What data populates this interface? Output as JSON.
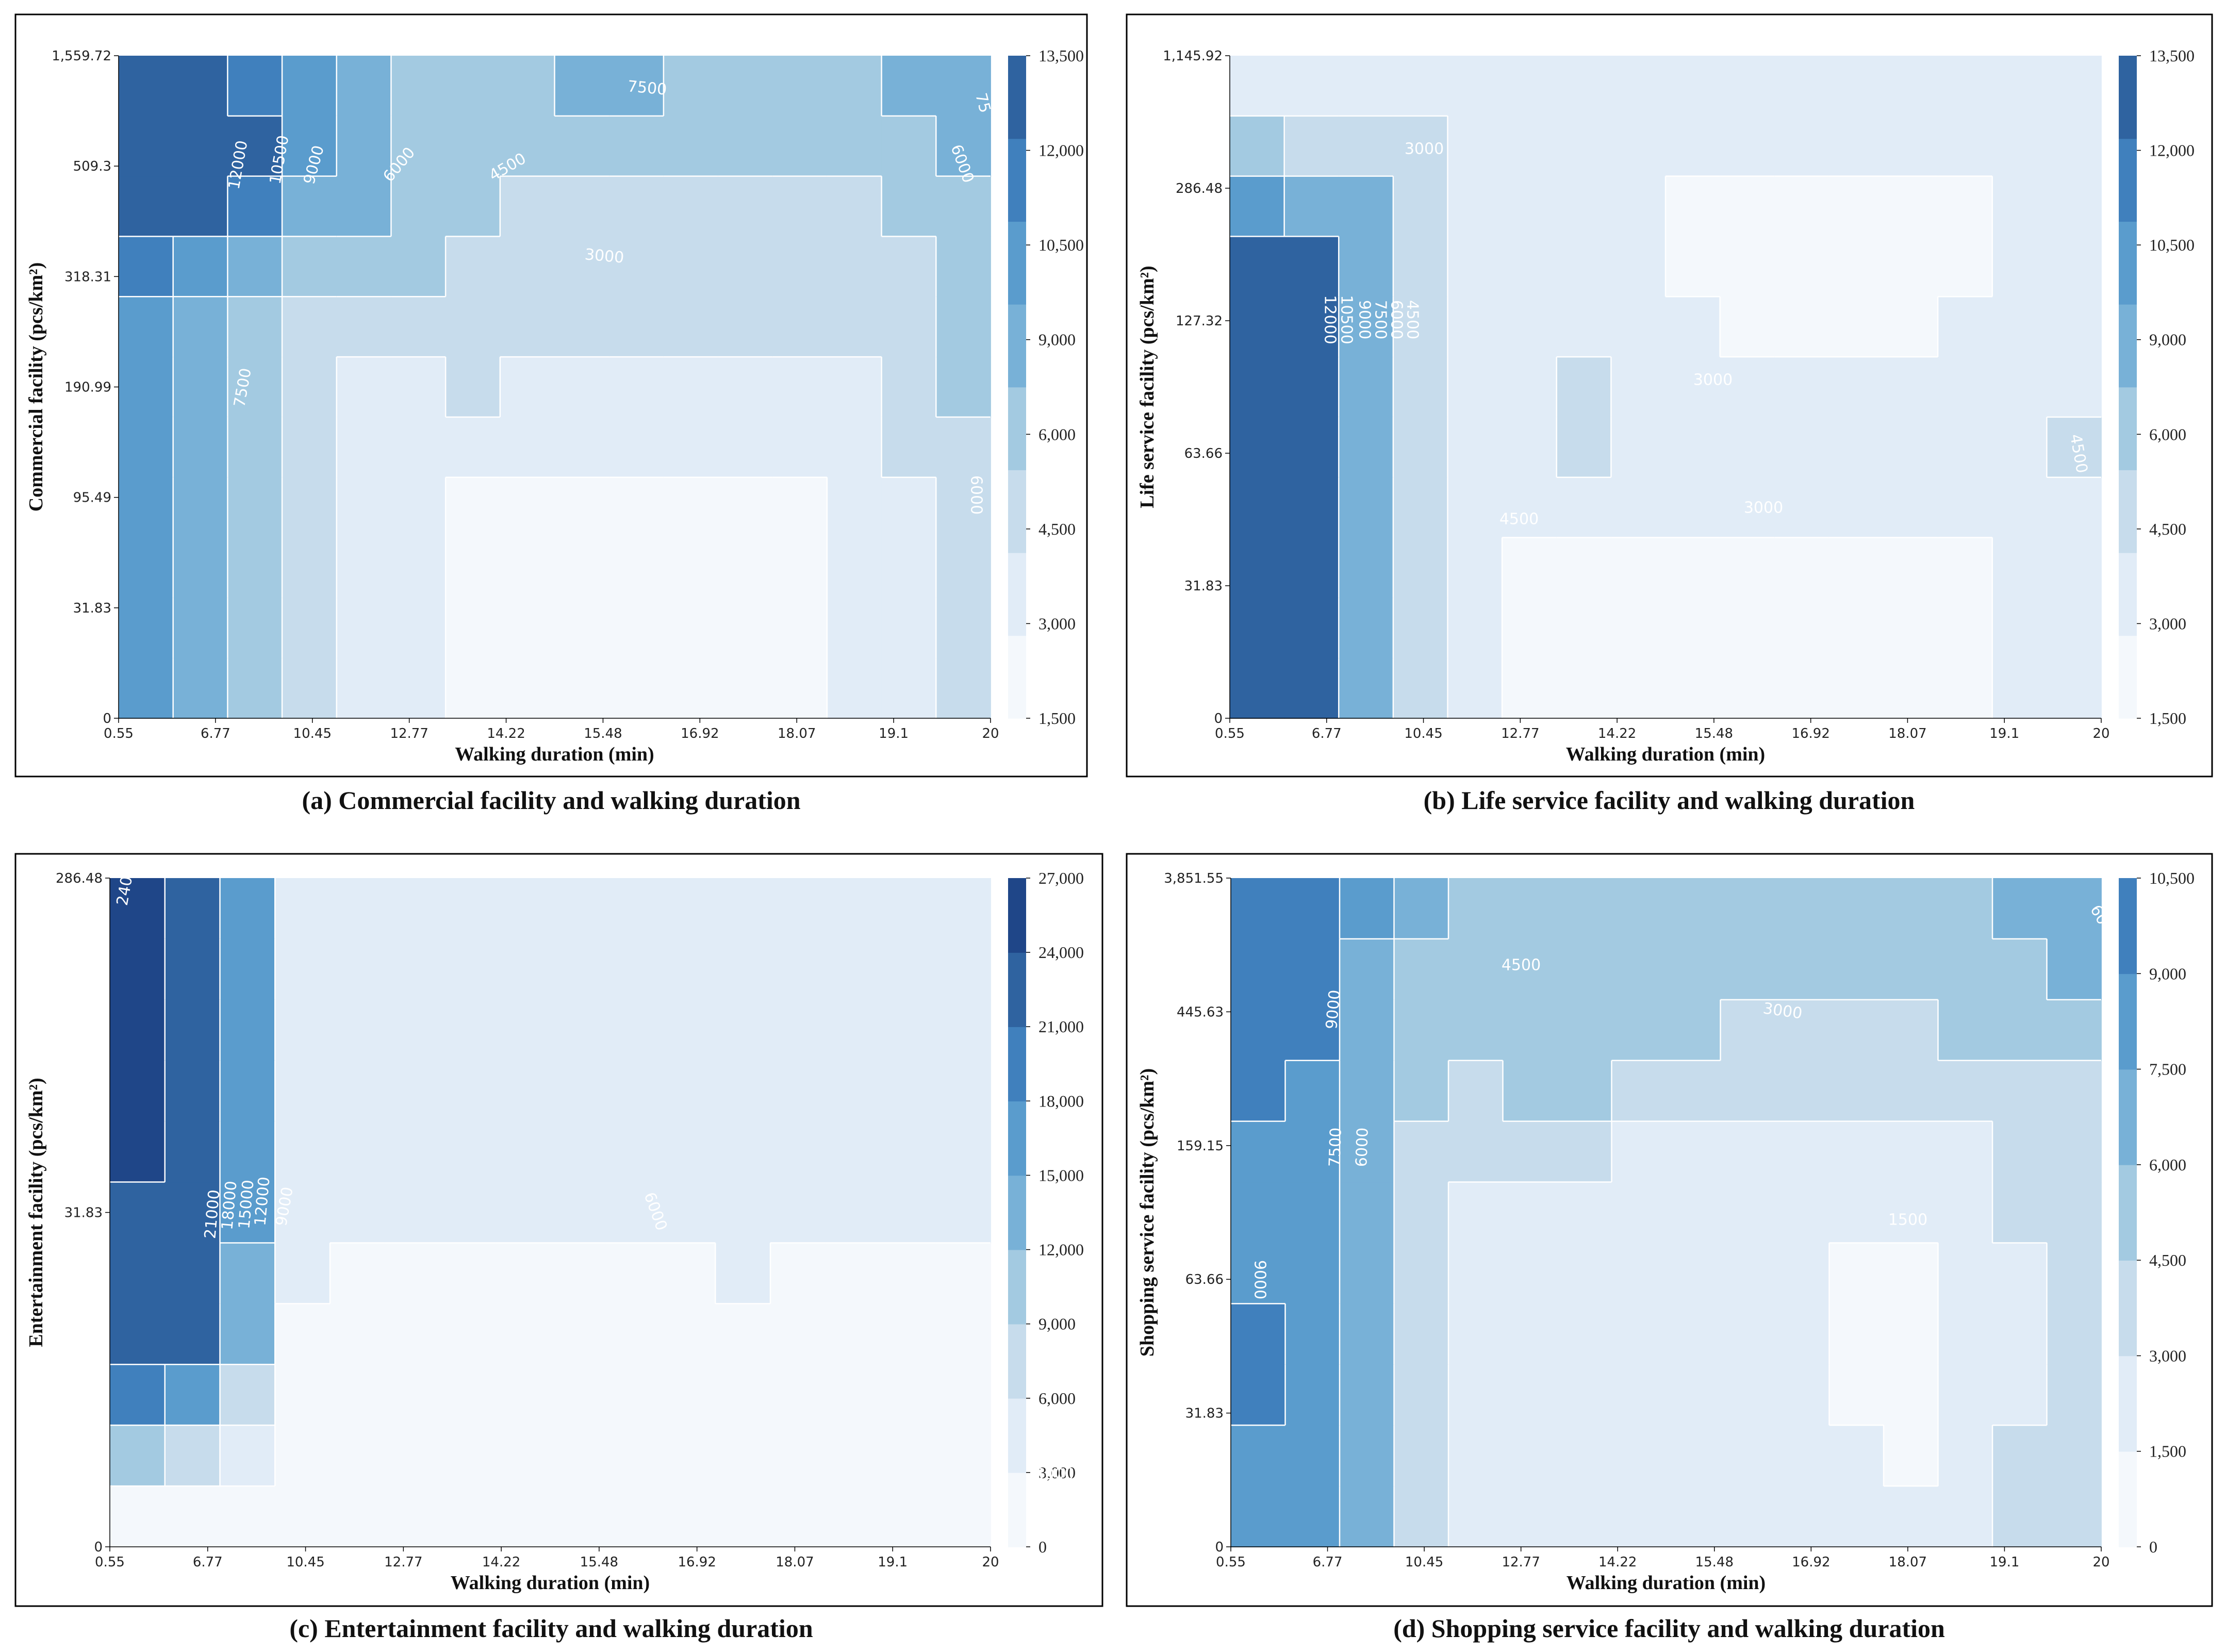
{
  "figure": {
    "panel_count": 4
  },
  "chart_data": [
    {
      "type": "contour",
      "caption": "(a) Commercial facility and walking duration",
      "xlabel": "Walking duration (min)",
      "ylabel": "Commercial facility (pcs/km²)",
      "x_ticks": [
        "0.55",
        "6.77",
        "10.45",
        "12.77",
        "14.22",
        "15.48",
        "16.92",
        "18.07",
        "19.1",
        "20"
      ],
      "y_ticks": [
        "0",
        "31.83",
        "95.49",
        "190.99",
        "318.31",
        "509.3",
        "1,559.72"
      ],
      "colorbar_ticks": [
        "1,500",
        "3,000",
        "4,500",
        "6,000",
        "9,000",
        "10,500",
        "12,000",
        "13,500"
      ],
      "levels": [
        1500,
        3000,
        4500,
        6000,
        7500,
        9000,
        10500,
        12000,
        13500
      ],
      "contour_labels": [
        "12000",
        "10500",
        "9000",
        "7500",
        "7500",
        "6000",
        "6000",
        "6000",
        "4500",
        "3000",
        "75"
      ],
      "z": [
        [
          10000,
          8000,
          6400,
          5000,
          3800,
          3000,
          2600,
          2600,
          2600,
          2600,
          2600,
          2600,
          2600,
          3000,
          3900,
          5200
        ],
        [
          10000,
          8000,
          6400,
          5000,
          3800,
          3000,
          2600,
          2600,
          2600,
          2600,
          2600,
          2600,
          2600,
          3000,
          3900,
          5100
        ],
        [
          10000,
          8000,
          6400,
          5000,
          3800,
          3000,
          2600,
          2600,
          2600,
          2600,
          2600,
          2600,
          2600,
          3000,
          4000,
          5200
        ],
        [
          10000,
          8000,
          6400,
          5000,
          3800,
          3000,
          2800,
          2800,
          2800,
          2800,
          2800,
          2800,
          2800,
          3100,
          4200,
          5400
        ],
        [
          10200,
          8200,
          6600,
          5200,
          4000,
          3300,
          3400,
          3400,
          3400,
          3400,
          3400,
          3400,
          3400,
          3500,
          4500,
          5700
        ],
        [
          10400,
          8400,
          6700,
          5400,
          4400,
          4000,
          4700,
          3500,
          3300,
          3300,
          3300,
          3300,
          3600,
          4000,
          4800,
          6000
        ],
        [
          10400,
          8400,
          6800,
          5800,
          5200,
          5200,
          5000,
          4800,
          4600,
          4600,
          4600,
          4600,
          4700,
          4800,
          5200,
          6300
        ],
        [
          11600,
          10000,
          8400,
          7000,
          6400,
          6000,
          5600,
          5200,
          5100,
          5000,
          5000,
          5000,
          5000,
          5200,
          5700,
          6700
        ],
        [
          14200,
          13500,
          10700,
          8800,
          7800,
          6600,
          6000,
          5600,
          5400,
          5300,
          5300,
          5300,
          5500,
          5900,
          6400,
          7200
        ],
        [
          14200,
          14200,
          12000,
          9600,
          8400,
          7200,
          6600,
          6200,
          6000,
          6000,
          6000,
          6000,
          6200,
          6700,
          7200,
          7800
        ],
        [
          13000,
          12600,
          10600,
          9000,
          8000,
          7400,
          6800,
          7000,
          7600,
          7600,
          7200,
          6600,
          6600,
          7200,
          7700,
          8000
        ]
      ]
    },
    {
      "type": "contour",
      "caption": "(b) Life service facility and walking duration",
      "xlabel": "Walking duration (min)",
      "ylabel": "Life service facility (pcs/km²)",
      "x_ticks": [
        "0.55",
        "6.77",
        "10.45",
        "12.77",
        "14.22",
        "15.48",
        "16.92",
        "18.07",
        "19.1",
        "20"
      ],
      "y_ticks": [
        "0",
        "31.83",
        "63.66",
        "127.32",
        "286.48",
        "1,145.92"
      ],
      "colorbar_ticks": [
        "1,500",
        "3,000",
        "4,500",
        "6,000",
        "9,000",
        "10,500",
        "12,000",
        "13,500"
      ],
      "levels": [
        1500,
        3000,
        4500,
        6000,
        7500,
        9000,
        10500,
        12000,
        13500
      ],
      "contour_labels": [
        "12000",
        "10500",
        "9000",
        "7500",
        "6000",
        "4500",
        "3000",
        "3000",
        "3000",
        "4500",
        "4500"
      ],
      "z": [
        [
          13000,
          12200,
          8000,
          4500,
          3000,
          2900,
          2800,
          2800,
          2800,
          2800,
          2800,
          2800,
          2800,
          2800,
          3000,
          3200
        ],
        [
          13000,
          12200,
          8000,
          4500,
          3000,
          2900,
          2800,
          2800,
          2800,
          2800,
          2800,
          2800,
          2800,
          2800,
          3000,
          3200
        ],
        [
          13000,
          12200,
          8000,
          4500,
          3000,
          2900,
          2800,
          2800,
          2800,
          2800,
          2800,
          2800,
          2800,
          2800,
          3000,
          3200
        ],
        [
          13000,
          12200,
          8200,
          4800,
          3400,
          3400,
          3500,
          3400,
          3300,
          3400,
          3300,
          3400,
          3300,
          3000,
          3300,
          4200
        ],
        [
          13000,
          12200,
          8200,
          4800,
          3400,
          4000,
          4800,
          4000,
          3500,
          3500,
          3500,
          3600,
          3800,
          3400,
          3400,
          4600
        ],
        [
          13000,
          12200,
          8200,
          4800,
          3400,
          3800,
          4600,
          3900,
          3400,
          3400,
          3600,
          3600,
          3700,
          3500,
          3500,
          4200
        ],
        [
          13000,
          12200,
          8200,
          4800,
          3600,
          3500,
          4200,
          3600,
          3100,
          2800,
          2800,
          2800,
          2900,
          3100,
          3400,
          3800
        ],
        [
          13000,
          12200,
          8200,
          4900,
          3800,
          3300,
          4000,
          3400,
          2800,
          2600,
          2600,
          2600,
          2700,
          2900,
          3300,
          3700
        ],
        [
          9000,
          8800,
          7800,
          5600,
          3900,
          3300,
          4000,
          3500,
          2800,
          2600,
          2600,
          2600,
          2700,
          2900,
          3200,
          3600
        ],
        [
          6000,
          5800,
          5400,
          4600,
          3600,
          3300,
          3900,
          3500,
          3200,
          3100,
          3100,
          3100,
          3200,
          3300,
          3400,
          3600
        ],
        [
          4000,
          3900,
          3800,
          3500,
          3300,
          3300,
          3800,
          3500,
          3300,
          3300,
          3300,
          3300,
          3300,
          3300,
          3300,
          3400
        ]
      ]
    },
    {
      "type": "contour",
      "caption": "(c) Entertainment facility and walking duration",
      "xlabel": "Walking duration (min)",
      "ylabel": "Entertainment facility (pcs/km²)",
      "x_ticks": [
        "0.55",
        "6.77",
        "10.45",
        "12.77",
        "14.22",
        "15.48",
        "16.92",
        "18.07",
        "19.1",
        "20"
      ],
      "y_ticks": [
        "0",
        "31.83",
        "286.48"
      ],
      "colorbar_ticks": [
        "0",
        "3,000",
        "6,000",
        "9,000",
        "12,000",
        "15,000",
        "18,000",
        "21,000",
        "24,000",
        "27,000"
      ],
      "levels": [
        0,
        3000,
        6000,
        9000,
        12000,
        15000,
        18000,
        21000,
        24000,
        27000
      ],
      "contour_labels": [
        "21000",
        "18000",
        "15000",
        "12000",
        "9000",
        "6000",
        "3000",
        "240"
      ],
      "z": [
        [
          2000,
          1800,
          1200,
          900,
          900,
          900,
          900,
          900,
          900,
          900,
          900,
          900,
          900,
          900,
          900,
          900
        ],
        [
          9000,
          7800,
          3500,
          1000,
          900,
          900,
          900,
          900,
          900,
          900,
          900,
          900,
          900,
          900,
          900,
          900
        ],
        [
          18000,
          16000,
          7000,
          1800,
          900,
          900,
          900,
          900,
          900,
          900,
          900,
          900,
          900,
          900,
          900,
          900
        ],
        [
          23000,
          22000,
          12000,
          2500,
          1200,
          1200,
          1200,
          1200,
          1200,
          1200,
          1800,
          1800,
          1800,
          1200,
          1200,
          1200
        ],
        [
          23000,
          22500,
          14500,
          3200,
          2000,
          2000,
          2000,
          2000,
          2000,
          2000,
          2800,
          3500,
          2200,
          2000,
          2000,
          2400
        ],
        [
          23000,
          22500,
          15500,
          4200,
          3200,
          3200,
          3200,
          3200,
          3200,
          3300,
          3400,
          3600,
          3200,
          3200,
          3400,
          3600
        ],
        [
          24000,
          23500,
          16000,
          4500,
          3500,
          3500,
          3500,
          3500,
          3500,
          3500,
          3500,
          3500,
          3500,
          3500,
          3500,
          3500
        ],
        [
          24000,
          23500,
          16000,
          4500,
          3500,
          3500,
          3500,
          3500,
          3500,
          3500,
          3500,
          3500,
          3500,
          3500,
          3500,
          3500
        ],
        [
          24000,
          23500,
          16000,
          4500,
          3500,
          3500,
          3500,
          3500,
          3500,
          3500,
          3500,
          3500,
          3500,
          3500,
          3500,
          3500
        ],
        [
          24000,
          23500,
          16000,
          4500,
          3500,
          3500,
          3500,
          3500,
          3500,
          3500,
          3500,
          3500,
          3500,
          3500,
          3500,
          3500
        ],
        [
          24000,
          23500,
          16000,
          4500,
          3500,
          3500,
          3500,
          3500,
          3500,
          3500,
          3500,
          3500,
          3500,
          3500,
          3500,
          3500
        ]
      ]
    },
    {
      "type": "contour",
      "caption": "(d) Shopping service facility and walking duration",
      "xlabel": "Walking duration (min)",
      "ylabel": "Shopping service facility (pcs/km²)",
      "x_ticks": [
        "0.55",
        "6.77",
        "10.45",
        "12.77",
        "14.22",
        "15.48",
        "16.92",
        "18.07",
        "19.1",
        "20"
      ],
      "y_ticks": [
        "0",
        "31.83",
        "63.66",
        "159.15",
        "445.63",
        "3,851.55"
      ],
      "colorbar_ticks": [
        "0",
        "1,500",
        "3,000",
        "4,500",
        "6,000",
        "7,500",
        "9,000",
        "10,500"
      ],
      "levels": [
        0,
        1500,
        3000,
        4500,
        6000,
        7500,
        9000,
        10500
      ],
      "contour_labels": [
        "9000",
        "9000",
        "7500",
        "6000",
        "4500",
        "3000",
        "1500",
        "60"
      ],
      "z": [
        [
          8400,
          8300,
          6400,
          4200,
          2800,
          2200,
          2100,
          2100,
          2100,
          2100,
          2100,
          2100,
          2100,
          2200,
          3200,
          3600
        ],
        [
          8400,
          8300,
          6400,
          4200,
          2800,
          2200,
          2100,
          2100,
          2100,
          2100,
          2100,
          2100,
          1400,
          2100,
          3000,
          3600
        ],
        [
          9100,
          8300,
          6400,
          4200,
          2800,
          2200,
          2100,
          2100,
          2100,
          2100,
          2000,
          1300,
          1300,
          1800,
          2800,
          3500
        ],
        [
          9600,
          8300,
          6400,
          4200,
          2800,
          2200,
          2100,
          2100,
          2100,
          2100,
          2000,
          1300,
          1300,
          1700,
          2800,
          3500
        ],
        [
          8600,
          8300,
          6400,
          4200,
          2800,
          2200,
          2100,
          2100,
          2100,
          2100,
          2000,
          1400,
          1300,
          2000,
          2900,
          3600
        ],
        [
          8400,
          8300,
          6400,
          4200,
          2800,
          2200,
          2100,
          2100,
          2100,
          2100,
          2100,
          2100,
          2100,
          2200,
          3000,
          3600
        ],
        [
          8700,
          8500,
          6600,
          4400,
          3000,
          3200,
          3600,
          2500,
          2400,
          2400,
          2400,
          2400,
          2400,
          2600,
          3200,
          3800
        ],
        [
          9200,
          8800,
          6900,
          4800,
          3800,
          4500,
          4700,
          3400,
          3300,
          3200,
          3200,
          3200,
          3200,
          3500,
          4000,
          4300
        ],
        [
          9700,
          9300,
          7200,
          5200,
          4600,
          4700,
          4800,
          4600,
          4500,
          4400,
          4400,
          4400,
          4400,
          4500,
          4800,
          5400
        ],
        [
          10200,
          9800,
          7400,
          5600,
          5000,
          5000,
          5000,
          5000,
          5000,
          5000,
          5000,
          5000,
          5000,
          5100,
          5500,
          6200
        ],
        [
          10400,
          10000,
          7600,
          6000,
          5400,
          5200,
          5000,
          5200,
          5200,
          5200,
          5200,
          5200,
          5200,
          5400,
          6000,
          6400
        ]
      ]
    }
  ]
}
